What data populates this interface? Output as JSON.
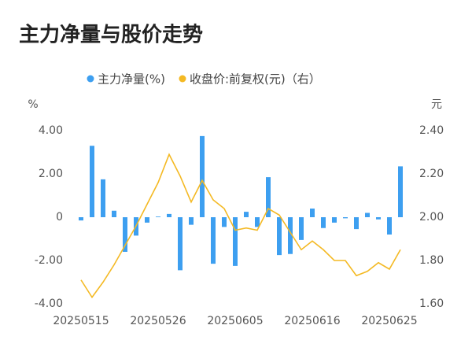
{
  "chart_data": {
    "type": "bar-line",
    "title": "主力净量与股价走势",
    "y_label": "%",
    "y2_label": "元",
    "categories": [
      "20250515",
      null,
      null,
      null,
      null,
      null,
      null,
      "20250526",
      null,
      null,
      null,
      null,
      null,
      null,
      "20250605",
      null,
      null,
      null,
      null,
      null,
      null,
      "20250616",
      null,
      null,
      null,
      null,
      null,
      null,
      "20250625",
      null
    ],
    "series": [
      {
        "name": "主力净量(%)",
        "color": "#3d9ff0",
        "type": "bar",
        "values": [
          -0.15,
          3.3,
          1.75,
          0.3,
          -1.6,
          -0.85,
          -0.25,
          0.03,
          0.15,
          -2.45,
          -0.35,
          3.75,
          -2.15,
          -0.45,
          -2.25,
          0.25,
          -0.45,
          1.85,
          -1.75,
          -1.7,
          -1.05,
          0.4,
          -0.5,
          -0.25,
          -0.05,
          -0.55,
          0.2,
          -0.1,
          -0.8,
          2.35
        ]
      },
      {
        "name": "收盘价:前复权(元)（右）",
        "color": "#f4b923",
        "type": "line",
        "axis": "y2",
        "values": [
          1.71,
          1.63,
          1.7,
          1.78,
          1.87,
          1.96,
          2.06,
          2.16,
          2.29,
          2.19,
          2.07,
          2.17,
          2.08,
          2.04,
          1.94,
          1.95,
          1.94,
          2.04,
          2.01,
          1.93,
          1.85,
          1.89,
          1.85,
          1.8,
          1.8,
          1.73,
          1.75,
          1.79,
          1.76,
          1.85
        ]
      }
    ],
    "ylim": [
      -4,
      4
    ],
    "yticks": [
      {
        "value": 4,
        "label": "4.00"
      },
      {
        "value": 2,
        "label": "2.00"
      },
      0,
      {
        "value": -2,
        "label": "-2.00"
      },
      {
        "value": -4,
        "label": "-4.00"
      }
    ],
    "y2lim": [
      1.6,
      2.4
    ],
    "y2ticks": [
      {
        "value": 2.4,
        "label": "2.40"
      },
      {
        "value": 2.2,
        "label": "2.20"
      },
      {
        "value": 2,
        "label": "2.00"
      },
      {
        "value": 1.8,
        "label": "1.80"
      },
      {
        "value": 1.6,
        "label": "1.60"
      }
    ],
    "grid": false
  }
}
